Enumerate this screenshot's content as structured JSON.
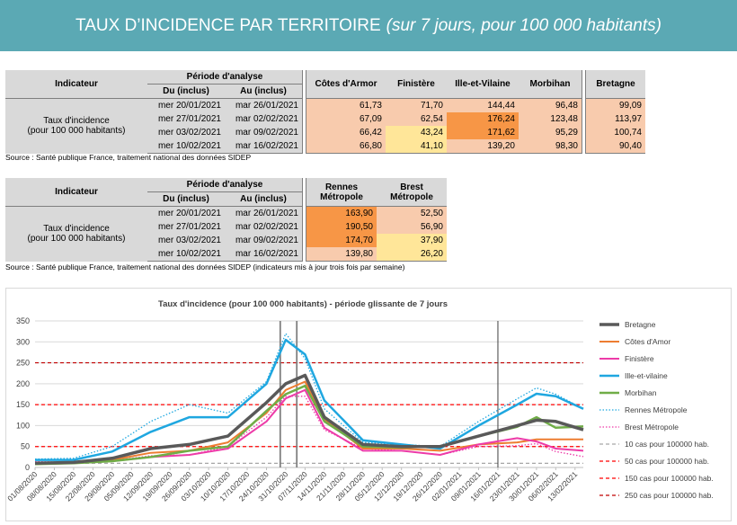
{
  "banner": {
    "title": "TAUX D’INCIDENCE PAR TERRITOIRE",
    "subtitle": "(sur 7 jours, pour 100 000 habitants)"
  },
  "table1": {
    "col_indicateur": "Indicateur",
    "col_periode": "Période d'analyse",
    "col_du": "Du (inclus)",
    "col_au": "Au (inclus)",
    "territories": [
      "Côtes d'Armor",
      "Finistère",
      "Ille-et-Vilaine",
      "Morbihan",
      "Bretagne"
    ],
    "row_label_line1": "Taux d'incidence",
    "row_label_line2": "(pour 100 000 habitants)",
    "rows": [
      {
        "du": "mer 20/01/2021",
        "au": "mar 26/01/2021",
        "values": [
          "61,73",
          "71,70",
          "144,44",
          "96,48",
          "99,09"
        ],
        "colors": [
          "#f8cbad",
          "#f8cbad",
          "#f8cbad",
          "#f8cbad",
          "#f8cbad"
        ]
      },
      {
        "du": "mer 27/01/2021",
        "au": "mar 02/02/2021",
        "values": [
          "67,09",
          "62,54",
          "176,24",
          "123,48",
          "113,97"
        ],
        "colors": [
          "#f8cbad",
          "#f8cbad",
          "#f79646",
          "#f8cbad",
          "#f8cbad"
        ]
      },
      {
        "du": "mer 03/02/2021",
        "au": "mar 09/02/2021",
        "values": [
          "66,42",
          "43,24",
          "171,62",
          "95,29",
          "100,74"
        ],
        "colors": [
          "#f8cbad",
          "#ffe699",
          "#f79646",
          "#f8cbad",
          "#f8cbad"
        ]
      },
      {
        "du": "mer 10/02/2021",
        "au": "mar 16/02/2021",
        "values": [
          "66,80",
          "41,10",
          "139,20",
          "98,30",
          "90,40"
        ],
        "colors": [
          "#f8cbad",
          "#ffe699",
          "#f8cbad",
          "#f8cbad",
          "#f8cbad"
        ]
      }
    ],
    "source": "Source  : Santé publique France, traitement national des données SIDEP"
  },
  "table2": {
    "col_indicateur": "Indicateur",
    "col_periode": "Période d'analyse",
    "col_du": "Du (inclus)",
    "col_au": "Au (inclus)",
    "territory1_line1": "Rennes",
    "territory1_line2": "Métropole",
    "territory2_line1": "Brest",
    "territory2_line2": "Métropole",
    "row_label_line1": "Taux d'incidence",
    "row_label_line2": "(pour 100 000 habitants)",
    "rows": [
      {
        "du": "mer 20/01/2021",
        "au": "mar 26/01/2021",
        "values": [
          "163,90",
          "52,50"
        ],
        "colors": [
          "#f79646",
          "#f8cbad"
        ]
      },
      {
        "du": "mer 27/01/2021",
        "au": "mar 02/02/2021",
        "values": [
          "190,50",
          "56,90"
        ],
        "colors": [
          "#f79646",
          "#f8cbad"
        ]
      },
      {
        "du": "mer 03/02/2021",
        "au": "mar 09/02/2021",
        "values": [
          "174,70",
          "37,90"
        ],
        "colors": [
          "#f79646",
          "#ffe699"
        ]
      },
      {
        "du": "mer 10/02/2021",
        "au": "mar 16/02/2021",
        "values": [
          "139,80",
          "26,20"
        ],
        "colors": [
          "#f8cbad",
          "#ffe699"
        ]
      }
    ],
    "source": "Source  : Santé publique France, traitement national des données SIDEP (indicateurs mis à jour trois fois par semaine)"
  },
  "chart_data": {
    "type": "line",
    "title": "Taux d'incidence (pour 100 000 habitants) - période glissante de 7 jours",
    "xlabel": "",
    "ylabel": "",
    "ylim": [
      0,
      350
    ],
    "yticks": [
      0,
      50,
      100,
      150,
      200,
      250,
      300,
      350
    ],
    "xlim": [
      "01/08/2020",
      "16/02/2021"
    ],
    "x_tick_labels": [
      "01/08/2020",
      "08/08/2020",
      "15/08/2020",
      "22/08/2020",
      "29/08/2020",
      "05/09/2020",
      "12/09/2020",
      "19/09/2020",
      "26/09/2020",
      "03/10/2020",
      "10/10/2020",
      "17/10/2020",
      "24/10/2020",
      "31/10/2020",
      "07/11/2020",
      "14/11/2020",
      "21/11/2020",
      "28/11/2020",
      "05/12/2020",
      "12/12/2020",
      "19/12/2020",
      "26/12/2020",
      "02/01/2021",
      "09/01/2021",
      "16/01/2021",
      "23/01/2021",
      "30/01/2021",
      "06/02/2021",
      "13/02/2021"
    ],
    "x_dates": [
      "01/08/2020",
      "15/08/2020",
      "29/08/2020",
      "12/09/2020",
      "26/09/2020",
      "10/10/2020",
      "24/10/2020",
      "31/10/2020",
      "07/11/2020",
      "14/11/2020",
      "28/11/2020",
      "12/12/2020",
      "26/12/2020",
      "09/01/2021",
      "23/01/2021",
      "30/01/2021",
      "06/02/2021",
      "16/02/2021"
    ],
    "series": [
      {
        "name": "Bretagne",
        "color": "#595959",
        "dash": "solid",
        "width": 3.5,
        "values": [
          10,
          12,
          22,
          45,
          55,
          75,
          155,
          200,
          220,
          120,
          55,
          50,
          50,
          75,
          100,
          113,
          110,
          90
        ]
      },
      {
        "name": "Côtes d'Amor",
        "color": "#ed7d31",
        "dash": "solid",
        "width": 2,
        "values": [
          8,
          10,
          18,
          35,
          40,
          60,
          130,
          185,
          205,
          115,
          45,
          45,
          40,
          55,
          60,
          67,
          67,
          67
        ]
      },
      {
        "name": "Finistère",
        "color": "#ed3ba8",
        "dash": "solid",
        "width": 2,
        "values": [
          12,
          10,
          15,
          25,
          30,
          45,
          110,
          165,
          185,
          95,
          40,
          40,
          30,
          55,
          70,
          62,
          45,
          40
        ]
      },
      {
        "name": "Ille-et-vilaine",
        "color": "#1fa7e0",
        "dash": "solid",
        "width": 2.5,
        "values": [
          18,
          18,
          38,
          85,
          120,
          120,
          200,
          305,
          270,
          160,
          65,
          55,
          45,
          100,
          150,
          176,
          170,
          140
        ]
      },
      {
        "name": "Morbihan",
        "color": "#70ad47",
        "dash": "solid",
        "width": 2.5,
        "values": [
          8,
          10,
          15,
          25,
          40,
          50,
          135,
          175,
          195,
          110,
          50,
          48,
          50,
          75,
          97,
          120,
          95,
          98
        ]
      },
      {
        "name": "Rennes Métropole",
        "color": "#1fa7e0",
        "dash": "dotted",
        "width": 1.3,
        "values": [
          20,
          22,
          50,
          110,
          150,
          130,
          205,
          320,
          260,
          140,
          60,
          55,
          50,
          110,
          164,
          190,
          175,
          140
        ]
      },
      {
        "name": "Brest Métropole",
        "color": "#ed3ba8",
        "dash": "dotted",
        "width": 1.3,
        "values": [
          14,
          12,
          16,
          28,
          30,
          50,
          120,
          170,
          170,
          90,
          45,
          40,
          30,
          50,
          52,
          57,
          38,
          26
        ]
      }
    ],
    "reference_lines": [
      {
        "name": "10 cas pour 100000 hab.",
        "value": 10,
        "color": "#a6a6a6"
      },
      {
        "name": "50 cas pour 100000 hab.",
        "value": 50,
        "color": "#ff0000"
      },
      {
        "name": "150 cas pour 100000 hab.",
        "value": 150,
        "color": "#ff0000"
      },
      {
        "name": "250 cas pour 100000 hab.",
        "value": 250,
        "color": "#c00000"
      }
    ],
    "vertical_markers": [
      {
        "date": "29/10/2020",
        "color": "#808080"
      },
      {
        "date": "04/11/2020",
        "color": "#808080"
      },
      {
        "date": "16/01/2021",
        "color": "#404040"
      }
    ],
    "grid": true,
    "legend_position": "right"
  }
}
